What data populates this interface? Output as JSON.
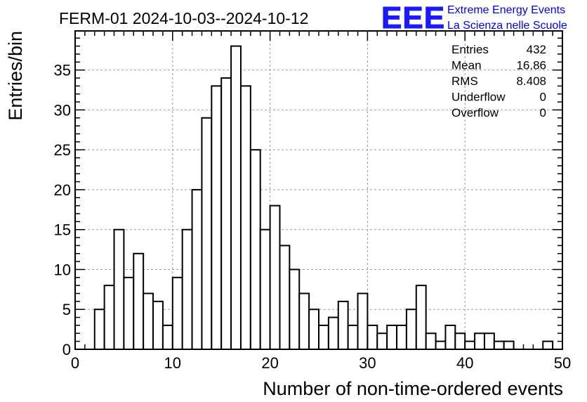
{
  "header": {
    "title": "FERM-01 2024-10-03--2024-10-12"
  },
  "logo": {
    "mark": "EEE",
    "line1": "Extreme Energy Events",
    "line2": "La Scienza nelle Scuole",
    "color": "#0000ee"
  },
  "stats": {
    "rows": [
      {
        "label": "Entries",
        "value": "432"
      },
      {
        "label": "Mean",
        "value": "16.86"
      },
      {
        "label": "RMS",
        "value": "8.408"
      },
      {
        "label": "Underflow",
        "value": "0"
      },
      {
        "label": "Overflow",
        "value": "0"
      }
    ]
  },
  "chart_data": {
    "type": "bar",
    "title": "FERM-01 2024-10-03--2024-10-12",
    "xlabel": "Number of non-time-ordered events",
    "ylabel": "Entries/bin",
    "xlim": [
      0,
      50
    ],
    "ylim": [
      0,
      39.9
    ],
    "x_ticks": [
      0,
      10,
      20,
      30,
      40,
      50
    ],
    "y_ticks": [
      0,
      5,
      10,
      15,
      20,
      25,
      30,
      35
    ],
    "grid": true,
    "bin_width": 1,
    "bin_edges_start": [
      2,
      3,
      4,
      5,
      6,
      7,
      8,
      9,
      10,
      11,
      12,
      13,
      14,
      15,
      16,
      17,
      18,
      19,
      20,
      21,
      22,
      23,
      24,
      25,
      26,
      27,
      28,
      29,
      30,
      31,
      32,
      33,
      34,
      35,
      36,
      37,
      38,
      39,
      40,
      41,
      42,
      43,
      44,
      45,
      46,
      47,
      48
    ],
    "values": [
      5,
      8,
      15,
      9,
      12,
      7,
      6,
      3,
      9,
      15,
      20,
      29,
      33,
      34,
      38,
      33,
      25,
      15,
      18,
      13,
      10,
      7,
      5,
      3,
      4,
      6,
      3,
      7,
      3,
      2,
      3,
      3,
      5,
      8,
      2,
      1,
      3,
      2,
      1,
      2,
      2,
      1,
      1,
      0,
      0,
      0,
      1
    ]
  }
}
